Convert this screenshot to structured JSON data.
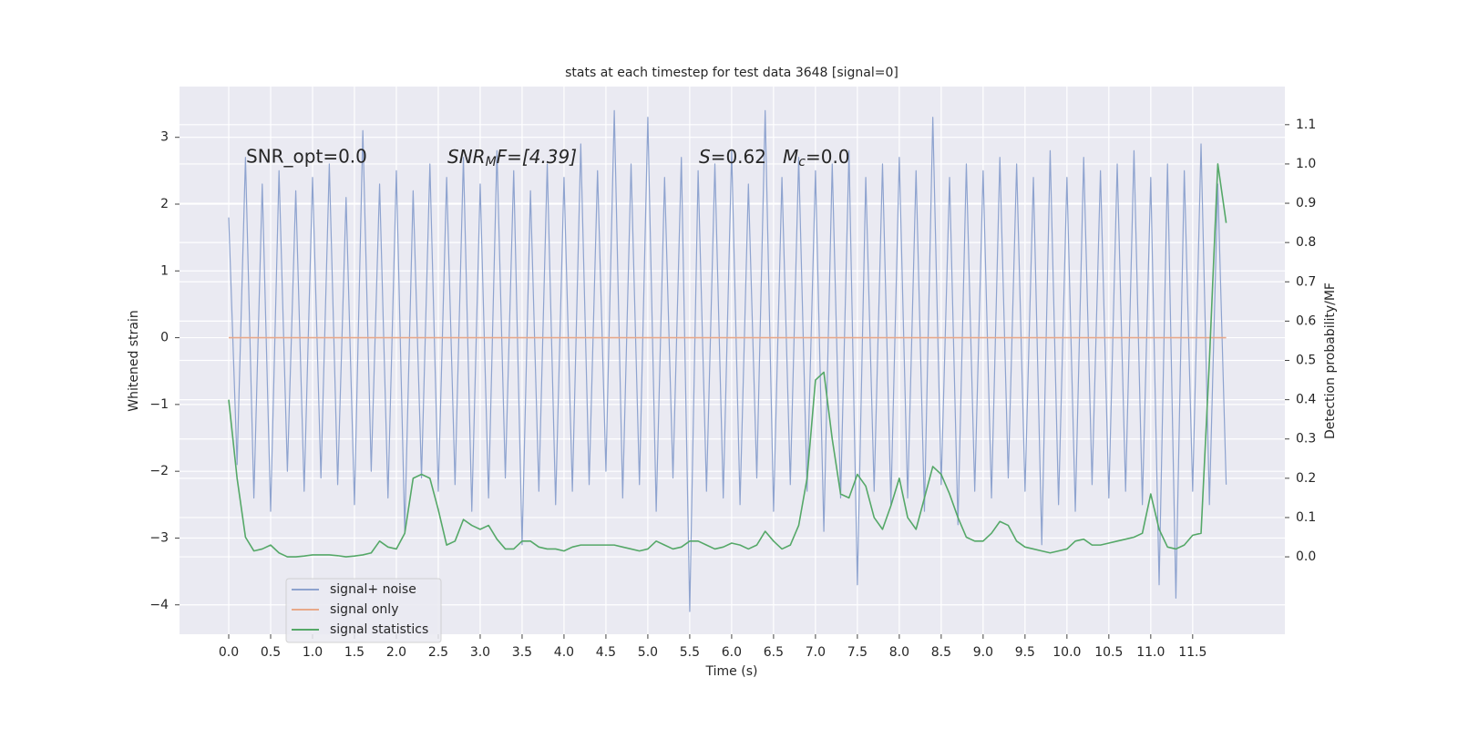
{
  "chart_data": {
    "type": "line",
    "title": "stats at each timestep for test data 3648 [signal=0]",
    "xlabel": "Time (s)",
    "ylabel": "Whitened strain",
    "y2label": "Detection probability/MF",
    "annotations": [
      {
        "text": "SNR_opt=0.0"
      },
      {
        "main": "SNR",
        "sub": "M",
        "tail": "F=[4.39]"
      },
      {
        "main": "S",
        "tail": "=0.62"
      },
      {
        "main": "M",
        "sub": "c",
        "tail": "=0.0"
      }
    ],
    "x": [
      0.0,
      0.1,
      0.2,
      0.3,
      0.4,
      0.5,
      0.6,
      0.7,
      0.8,
      0.9,
      1.0,
      1.1,
      1.2,
      1.3,
      1.4,
      1.5,
      1.6,
      1.7,
      1.8,
      1.9,
      2.0,
      2.1,
      2.2,
      2.3,
      2.4,
      2.5,
      2.6,
      2.7,
      2.8,
      2.9,
      3.0,
      3.1,
      3.2,
      3.3,
      3.4,
      3.5,
      3.6,
      3.7,
      3.8,
      3.9,
      4.0,
      4.1,
      4.2,
      4.3,
      4.4,
      4.5,
      4.6,
      4.7,
      4.8,
      4.9,
      5.0,
      5.1,
      5.2,
      5.3,
      5.4,
      5.5,
      5.6,
      5.7,
      5.8,
      5.9,
      6.0,
      6.1,
      6.2,
      6.3,
      6.4,
      6.5,
      6.6,
      6.7,
      6.8,
      6.9,
      7.0,
      7.1,
      7.2,
      7.3,
      7.4,
      7.5,
      7.6,
      7.7,
      7.8,
      7.9,
      8.0,
      8.1,
      8.2,
      8.3,
      8.4,
      8.5,
      8.6,
      8.7,
      8.8,
      8.9,
      9.0,
      9.1,
      9.2,
      9.3,
      9.4,
      9.5,
      9.6,
      9.7,
      9.8,
      9.9,
      10.0,
      10.1,
      10.2,
      10.3,
      10.4,
      10.5,
      10.6,
      10.7,
      10.8,
      10.9,
      11.0,
      11.1,
      11.2,
      11.3,
      11.4,
      11.5,
      11.6,
      11.7,
      11.8,
      11.9
    ],
    "series": [
      {
        "name": "signal+ noise",
        "color": "#8ea3cf",
        "axis": "y",
        "values": [
          1.8,
          -1.9,
          2.7,
          -2.4,
          2.3,
          -2.6,
          2.5,
          -2.0,
          2.2,
          -2.3,
          2.4,
          -2.1,
          2.6,
          -2.2,
          2.1,
          -2.5,
          3.1,
          -2.0,
          2.3,
          -2.4,
          2.5,
          -2.9,
          2.2,
          -2.1,
          2.6,
          -2.3,
          2.4,
          -2.2,
          2.7,
          -2.6,
          2.3,
          -2.4,
          2.8,
          -2.1,
          2.5,
          -3.1,
          2.2,
          -2.3,
          2.6,
          -2.5,
          2.4,
          -2.3,
          2.9,
          -2.2,
          2.5,
          -2.0,
          3.4,
          -2.4,
          2.6,
          -2.2,
          3.3,
          -2.6,
          2.4,
          -2.1,
          2.7,
          -4.1,
          2.5,
          -2.3,
          2.6,
          -2.4,
          2.8,
          -2.5,
          2.3,
          -2.1,
          3.4,
          -2.6,
          2.4,
          -2.2,
          2.7,
          -2.3,
          2.5,
          -2.9,
          2.6,
          -2.4,
          2.8,
          -3.7,
          2.4,
          -2.3,
          2.6,
          -2.5,
          2.7,
          -2.4,
          2.5,
          -2.6,
          3.3,
          -2.2,
          2.4,
          -2.8,
          2.6,
          -2.3,
          2.5,
          -2.4,
          2.7,
          -2.1,
          2.6,
          -2.3,
          2.4,
          -3.1,
          2.8,
          -2.5,
          2.4,
          -2.6,
          2.7,
          -2.2,
          2.5,
          -2.4,
          2.6,
          -2.3,
          2.8,
          -2.5,
          2.4,
          -3.7,
          2.6,
          -3.9,
          2.5,
          -2.3,
          2.9,
          -2.5,
          2.3,
          -2.2
        ]
      },
      {
        "name": "signal only",
        "color": "#e8a98a",
        "axis": "y",
        "values": [
          0,
          0,
          0,
          0,
          0,
          0,
          0,
          0,
          0,
          0,
          0,
          0,
          0,
          0,
          0,
          0,
          0,
          0,
          0,
          0,
          0,
          0,
          0,
          0,
          0,
          0,
          0,
          0,
          0,
          0,
          0,
          0,
          0,
          0,
          0,
          0,
          0,
          0,
          0,
          0,
          0,
          0,
          0,
          0,
          0,
          0,
          0,
          0,
          0,
          0,
          0,
          0,
          0,
          0,
          0,
          0,
          0,
          0,
          0,
          0,
          0,
          0,
          0,
          0,
          0,
          0,
          0,
          0,
          0,
          0,
          0,
          0,
          0,
          0,
          0,
          0,
          0,
          0,
          0,
          0,
          0,
          0,
          0,
          0,
          0,
          0,
          0,
          0,
          0,
          0,
          0,
          0,
          0,
          0,
          0,
          0,
          0,
          0,
          0,
          0,
          0,
          0,
          0,
          0,
          0,
          0,
          0,
          0,
          0,
          0,
          0,
          0,
          0,
          0,
          0,
          0,
          0,
          0,
          0,
          0
        ]
      },
      {
        "name": "signal statistics",
        "color": "#55a868",
        "axis": "y2",
        "values": [
          0.4,
          0.2,
          0.05,
          0.015,
          0.02,
          0.03,
          0.01,
          0.0,
          0.0,
          0.002,
          0.005,
          0.005,
          0.005,
          0.003,
          0.0,
          0.002,
          0.005,
          0.01,
          0.04,
          0.025,
          0.02,
          0.06,
          0.2,
          0.21,
          0.2,
          0.12,
          0.03,
          0.04,
          0.095,
          0.08,
          0.07,
          0.08,
          0.045,
          0.02,
          0.02,
          0.04,
          0.04,
          0.025,
          0.02,
          0.02,
          0.015,
          0.025,
          0.03,
          0.03,
          0.03,
          0.03,
          0.03,
          0.025,
          0.02,
          0.015,
          0.02,
          0.04,
          0.03,
          0.02,
          0.025,
          0.04,
          0.04,
          0.03,
          0.02,
          0.025,
          0.035,
          0.03,
          0.02,
          0.03,
          0.065,
          0.04,
          0.02,
          0.03,
          0.08,
          0.2,
          0.45,
          0.47,
          0.3,
          0.16,
          0.15,
          0.21,
          0.18,
          0.1,
          0.07,
          0.13,
          0.2,
          0.1,
          0.07,
          0.15,
          0.23,
          0.21,
          0.16,
          0.1,
          0.05,
          0.04,
          0.04,
          0.06,
          0.09,
          0.08,
          0.04,
          0.025,
          0.02,
          0.015,
          0.01,
          0.015,
          0.02,
          0.04,
          0.045,
          0.03,
          0.03,
          0.035,
          0.04,
          0.045,
          0.05,
          0.06,
          0.16,
          0.07,
          0.025,
          0.02,
          0.03,
          0.055,
          0.06,
          0.5,
          1.0,
          0.85
        ]
      }
    ],
    "xlim": [
      -0.587,
      12.6
    ],
    "xticks": [
      {
        "value": 0,
        "label": "0.0"
      },
      0.5,
      {
        "value": 1,
        "label": "1.0"
      },
      1.5,
      {
        "value": 2,
        "label": "2.0"
      },
      2.5,
      {
        "value": 3,
        "label": "3.0"
      },
      3.5,
      {
        "value": 4,
        "label": "4.0"
      },
      4.5,
      {
        "value": 5,
        "label": "5.0"
      },
      5.5,
      {
        "value": 6,
        "label": "6.0"
      },
      6.5,
      {
        "value": 7,
        "label": "7.0"
      },
      7.5,
      {
        "value": 8,
        "label": "8.0"
      },
      8.5,
      {
        "value": 9,
        "label": "9.0"
      },
      9.5,
      {
        "value": 10,
        "label": "10.0"
      },
      10.5,
      {
        "value": 11,
        "label": "11.0"
      },
      11.5
    ],
    "ylim": [
      -4.44,
      3.76
    ],
    "yticks": [
      {
        "value": -4,
        "label": "−4"
      },
      {
        "value": -3,
        "label": "−3"
      },
      {
        "value": -2,
        "label": "−2"
      },
      {
        "value": -1,
        "label": "−1"
      },
      0,
      1,
      2,
      3
    ],
    "y2lim": [
      -0.197,
      1.197
    ],
    "y2ticks": [
      {
        "value": 0,
        "label": "0.0"
      },
      0.1,
      0.2,
      0.3,
      0.4,
      0.5,
      0.6,
      0.7,
      0.8,
      0.9,
      {
        "value": 1,
        "label": "1.0"
      },
      1.1
    ],
    "grid": true,
    "legend": "lower left"
  }
}
